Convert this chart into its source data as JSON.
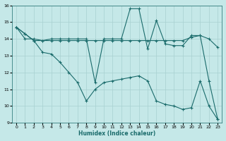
{
  "xlabel": "Humidex (Indice chaleur)",
  "bg_color": "#c5e8e8",
  "grid_color": "#a8d0d0",
  "line_color": "#1a6b6b",
  "xlim": [
    -0.5,
    23.5
  ],
  "ylim": [
    9,
    16
  ],
  "xticks": [
    0,
    1,
    2,
    3,
    4,
    5,
    6,
    7,
    8,
    9,
    10,
    11,
    12,
    13,
    14,
    15,
    16,
    17,
    18,
    19,
    20,
    21,
    22,
    23
  ],
  "yticks": [
    9,
    10,
    11,
    12,
    13,
    14,
    15,
    16
  ],
  "line_volatile_x": [
    0,
    1,
    2,
    3,
    4,
    5,
    6,
    7,
    8,
    9,
    10,
    11,
    12,
    13,
    14,
    15,
    16,
    17,
    18,
    19,
    20,
    21,
    22,
    23
  ],
  "line_volatile_y": [
    14.7,
    14.3,
    13.9,
    13.9,
    14.0,
    14.0,
    14.0,
    14.0,
    14.0,
    11.4,
    14.0,
    14.0,
    14.0,
    15.8,
    15.8,
    13.4,
    15.1,
    13.7,
    13.6,
    13.6,
    14.2,
    14.2,
    11.5,
    9.2
  ],
  "line_flat_x": [
    0,
    1,
    2,
    3,
    4,
    5,
    6,
    7,
    8,
    9,
    10,
    11,
    12,
    13,
    14,
    15,
    16,
    17,
    18,
    19,
    20,
    21,
    22,
    23
  ],
  "line_flat_y": [
    14.7,
    14.0,
    14.0,
    13.9,
    13.9,
    13.9,
    13.9,
    13.9,
    13.9,
    13.9,
    13.9,
    13.9,
    13.9,
    13.9,
    13.9,
    13.9,
    13.9,
    13.9,
    13.9,
    13.9,
    14.1,
    14.2,
    14.0,
    13.5
  ],
  "line_desc_x": [
    0,
    1,
    2,
    3,
    4,
    5,
    6,
    7,
    8,
    9,
    10,
    11,
    12,
    13,
    14,
    15,
    16,
    17,
    18,
    19,
    20,
    21,
    22,
    23
  ],
  "line_desc_y": [
    14.7,
    14.3,
    13.9,
    13.2,
    13.1,
    12.6,
    12.0,
    11.4,
    10.3,
    11.0,
    11.4,
    11.5,
    11.6,
    11.7,
    11.8,
    11.5,
    10.3,
    10.1,
    10.0,
    9.8,
    9.9,
    11.5,
    10.0,
    9.2
  ]
}
